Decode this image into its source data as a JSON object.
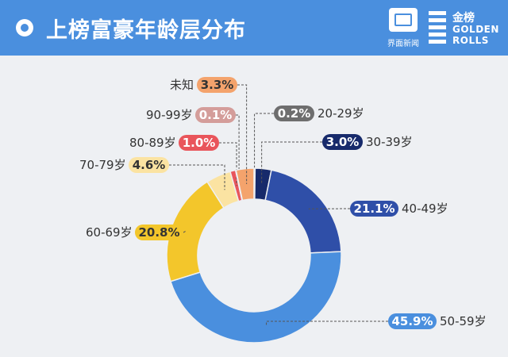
{
  "header": {
    "title": "上榜富豪年龄层分布",
    "bg_color": "#4a8fde",
    "logo_jiemian": {
      "icon": "jiemian-logo-icon",
      "text": "界面新闻"
    },
    "logo_golden_rolls": {
      "cn": "金榜",
      "en_line1": "GOLDEN",
      "en_line2": "ROLLS"
    }
  },
  "chart_data": {
    "type": "pie",
    "variant": "donut",
    "title": "上榜富豪年龄层分布",
    "unit": "%",
    "slices": [
      {
        "label": "20-29岁",
        "value": 0.2,
        "display": "0.2%",
        "color": "#6e6e6e",
        "text_color": "#ffffff"
      },
      {
        "label": "30-39岁",
        "value": 3.0,
        "display": "3.0%",
        "color": "#172a6b",
        "text_color": "#ffffff"
      },
      {
        "label": "40-49岁",
        "value": 21.1,
        "display": "21.1%",
        "color": "#2f4fa8",
        "text_color": "#ffffff"
      },
      {
        "label": "50-59岁",
        "value": 45.9,
        "display": "45.9%",
        "color": "#4a8fde",
        "text_color": "#ffffff"
      },
      {
        "label": "60-69岁",
        "value": 20.8,
        "display": "20.8%",
        "color": "#f3c62b",
        "text_color": "#333333"
      },
      {
        "label": "70-79岁",
        "value": 4.6,
        "display": "4.6%",
        "color": "#fbe3a2",
        "text_color": "#333333"
      },
      {
        "label": "80-89岁",
        "value": 1.0,
        "display": "1.0%",
        "color": "#e9555b",
        "text_color": "#ffffff"
      },
      {
        "label": "90-99岁",
        "value": 0.1,
        "display": "0.1%",
        "color": "#d49d9a",
        "text_color": "#ffffff"
      },
      {
        "label": "未知",
        "value": 3.3,
        "display": "3.3%",
        "color": "#f4a36c",
        "text_color": "#333333"
      }
    ],
    "legend": "none"
  }
}
